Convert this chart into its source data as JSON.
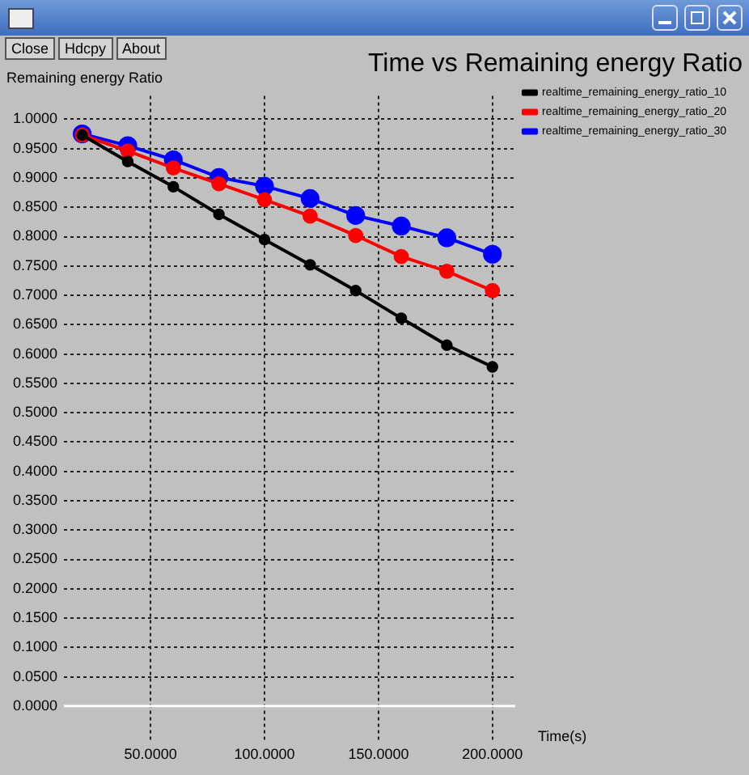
{
  "chart_data": {
    "type": "line",
    "title": "Time vs Remaining energy Ratio",
    "ylabel": "Remaining energy Ratio",
    "xlabel": "Time(s)",
    "annotations": [
      "Close",
      "Hdcpy",
      "About"
    ],
    "x": [
      20,
      40,
      60,
      80,
      100,
      120,
      140,
      160,
      180,
      200
    ],
    "series": [
      {
        "name": "realtime_remaining_energy_ratio_10",
        "color": "#000000",
        "values": [
          0.973,
          0.928,
          0.885,
          0.838,
          0.795,
          0.752,
          0.708,
          0.661,
          0.615,
          0.578
        ]
      },
      {
        "name": "realtime_remaining_energy_ratio_20",
        "color": "#ff0000",
        "values": [
          0.973,
          0.946,
          0.917,
          0.89,
          0.863,
          0.835,
          0.802,
          0.766,
          0.741,
          0.708
        ]
      },
      {
        "name": "realtime_remaining_energy_ratio_30",
        "color": "#0000ff",
        "values": [
          0.975,
          0.955,
          0.931,
          0.901,
          0.886,
          0.865,
          0.836,
          0.818,
          0.798,
          0.77
        ]
      }
    ],
    "xlim": [
      12,
      210
    ],
    "xticks": [
      {
        "value": 50,
        "label": "50.0000"
      },
      {
        "value": 100,
        "label": "100.0000"
      },
      {
        "value": 150,
        "label": "150.0000"
      },
      {
        "value": 200,
        "label": "200.0000"
      }
    ],
    "ylim": [
      -0.06,
      1.04
    ],
    "yticks": [
      {
        "value": 0,
        "label": "0.0000"
      },
      {
        "value": 0.05,
        "label": "0.0500"
      },
      {
        "value": 0.1,
        "label": "0.1000"
      },
      {
        "value": 0.15,
        "label": "0.1500"
      },
      {
        "value": 0.2,
        "label": "0.2000"
      },
      {
        "value": 0.25,
        "label": "0.2500"
      },
      {
        "value": 0.3,
        "label": "0.3000"
      },
      {
        "value": 0.35,
        "label": "0.3500"
      },
      {
        "value": 0.4,
        "label": "0.4000"
      },
      {
        "value": 0.45,
        "label": "0.4500"
      },
      {
        "value": 0.5,
        "label": "0.5000"
      },
      {
        "value": 0.55,
        "label": "0.5500"
      },
      {
        "value": 0.6,
        "label": "0.6000"
      },
      {
        "value": 0.65,
        "label": "0.6500"
      },
      {
        "value": 0.7,
        "label": "0.7000"
      },
      {
        "value": 0.75,
        "label": "0.7500"
      },
      {
        "value": 0.8,
        "label": "0.8000"
      },
      {
        "value": 0.85,
        "label": "0.8500"
      },
      {
        "value": 0.9,
        "label": "0.9000"
      },
      {
        "value": 0.95,
        "label": "0.9500"
      },
      {
        "value": 1,
        "label": "1.0000"
      }
    ],
    "ref_lines": [
      {
        "axis": "y",
        "value": 0,
        "color": "#ffffff"
      }
    ],
    "grid": true,
    "legend": "top right",
    "marker": "circle",
    "line_style": "solid"
  }
}
